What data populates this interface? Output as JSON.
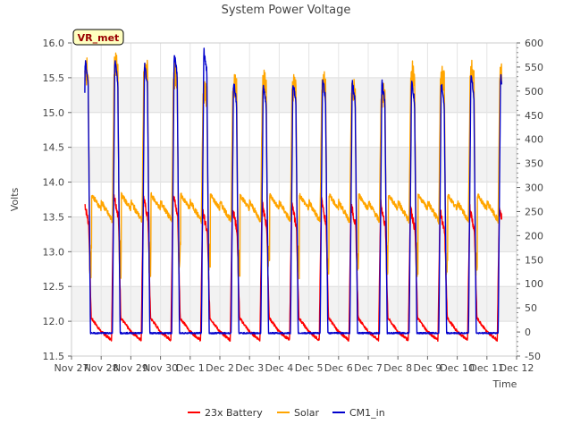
{
  "chart_data": {
    "type": "line",
    "title": "System Power Voltage",
    "xlabel": "Time",
    "ylabel": "Volts",
    "annotation": "VR_met",
    "x_ticks": [
      "Nov 27",
      "Nov 28",
      "Nov 29",
      "Nov 30",
      "Dec 1",
      "Dec 2",
      "Dec 3",
      "Dec 4",
      "Dec 5",
      "Dec 6",
      "Dec 7",
      "Dec 8",
      "Dec 9",
      "Dec 10",
      "Dec 11",
      "Dec 12"
    ],
    "x_range_days": [
      0,
      15
    ],
    "y_left": {
      "range": [
        11.5,
        16.0
      ],
      "ticks": [
        "11.5",
        "12.0",
        "12.5",
        "13.0",
        "13.5",
        "14.0",
        "14.5",
        "15.0",
        "15.5",
        "16.0"
      ]
    },
    "y_right": {
      "range": [
        -50,
        600
      ],
      "ticks": [
        "-50",
        "0",
        "50",
        "100",
        "150",
        "200",
        "250",
        "300",
        "350",
        "400",
        "450",
        "500",
        "550",
        "600"
      ]
    },
    "grid": true,
    "legend_position": "bottom-center",
    "series": [
      {
        "name": "23x Battery",
        "axis": "left",
        "color": "#ff0000",
        "baseline": 11.8,
        "peak": 13.75,
        "day_peaks": [
          13.75,
          13.85,
          13.8,
          13.85,
          13.6,
          13.65,
          13.7,
          13.7,
          13.75,
          13.7,
          13.7,
          13.65,
          13.6,
          13.65
        ]
      },
      {
        "name": "Solar",
        "axis": "right",
        "color": "#ffa500",
        "day_peaks": [
          560,
          570,
          565,
          550,
          520,
          530,
          540,
          525,
          535,
          520,
          515,
          555,
          550,
          555
        ],
        "evening_level": 240
      },
      {
        "name": "CM1_in",
        "axis": "left",
        "color": "#0000cc",
        "baseline": 11.83,
        "day_peaks": [
          15.75,
          15.75,
          15.7,
          15.85,
          15.9,
          15.45,
          15.4,
          15.45,
          15.5,
          15.45,
          15.45,
          15.45,
          15.45,
          15.55
        ]
      }
    ]
  }
}
